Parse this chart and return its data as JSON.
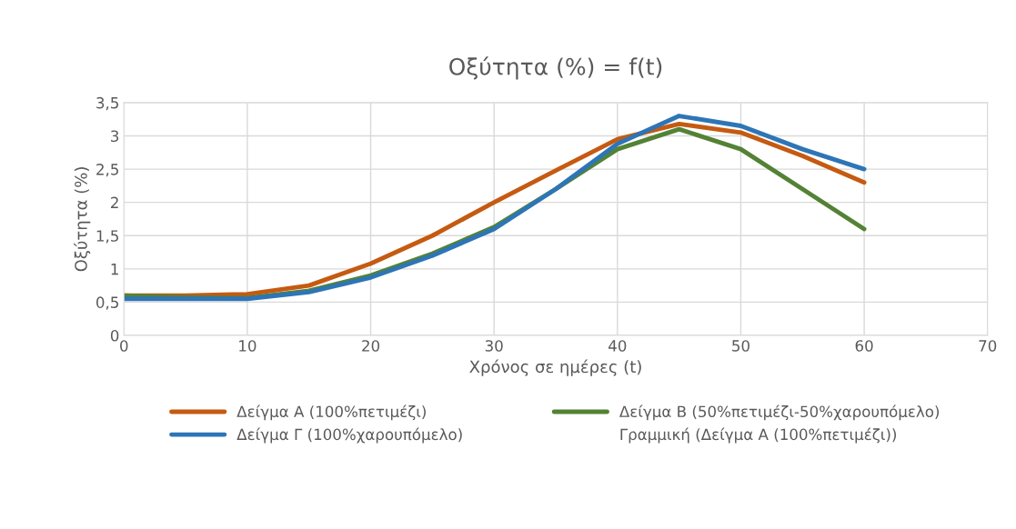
{
  "chart_data": {
    "type": "line",
    "title": "Οξύτητα (%) = f(t)",
    "xlabel": "Χρόνος σε ημέρες (t)",
    "ylabel": "Οξύτητα (%)",
    "x": [
      0,
      5,
      10,
      15,
      20,
      25,
      30,
      35,
      40,
      45,
      50,
      55,
      60
    ],
    "series": [
      {
        "name": "Δείγμα Α (100%πετιμέζι)",
        "color": "#c55a11",
        "values": [
          0.6,
          0.6,
          0.62,
          0.75,
          1.08,
          1.5,
          2.0,
          2.48,
          2.95,
          3.18,
          3.05,
          2.7,
          2.3
        ]
      },
      {
        "name": "Δείγμα Β (50%πετιμέζι-50%χαρουπόμελο)",
        "color": "#548235",
        "values": [
          0.6,
          0.57,
          0.56,
          0.67,
          0.9,
          1.23,
          1.63,
          2.2,
          2.8,
          3.1,
          2.8,
          2.2,
          1.6
        ]
      },
      {
        "name": "Δείγμα Γ (100%χαρουπόμελο)",
        "color": "#2e75b6",
        "values": [
          0.55,
          0.55,
          0.55,
          0.65,
          0.87,
          1.2,
          1.6,
          2.2,
          2.88,
          3.3,
          3.15,
          2.8,
          2.5
        ]
      }
    ],
    "annotations": [
      "Γραμμική (Δείγμα Α (100%πετιμέζι))"
    ],
    "xlim": [
      0,
      70
    ],
    "xticks": [
      0,
      10,
      20,
      30,
      40,
      50,
      60,
      70
    ],
    "ylim": [
      0,
      3.5
    ],
    "yticks": [
      {
        "value": 0,
        "label": "0"
      },
      {
        "value": 0.5,
        "label": "0,5"
      },
      {
        "value": 1,
        "label": "1"
      },
      {
        "value": 1.5,
        "label": "1,5"
      },
      {
        "value": 2,
        "label": "2"
      },
      {
        "value": 2.5,
        "label": "2,5"
      },
      {
        "value": 3,
        "label": "3"
      },
      {
        "value": 3.5,
        "label": "3,5"
      }
    ],
    "grid": true,
    "legend": "bottom",
    "marker": "none",
    "line_style": "solid"
  }
}
